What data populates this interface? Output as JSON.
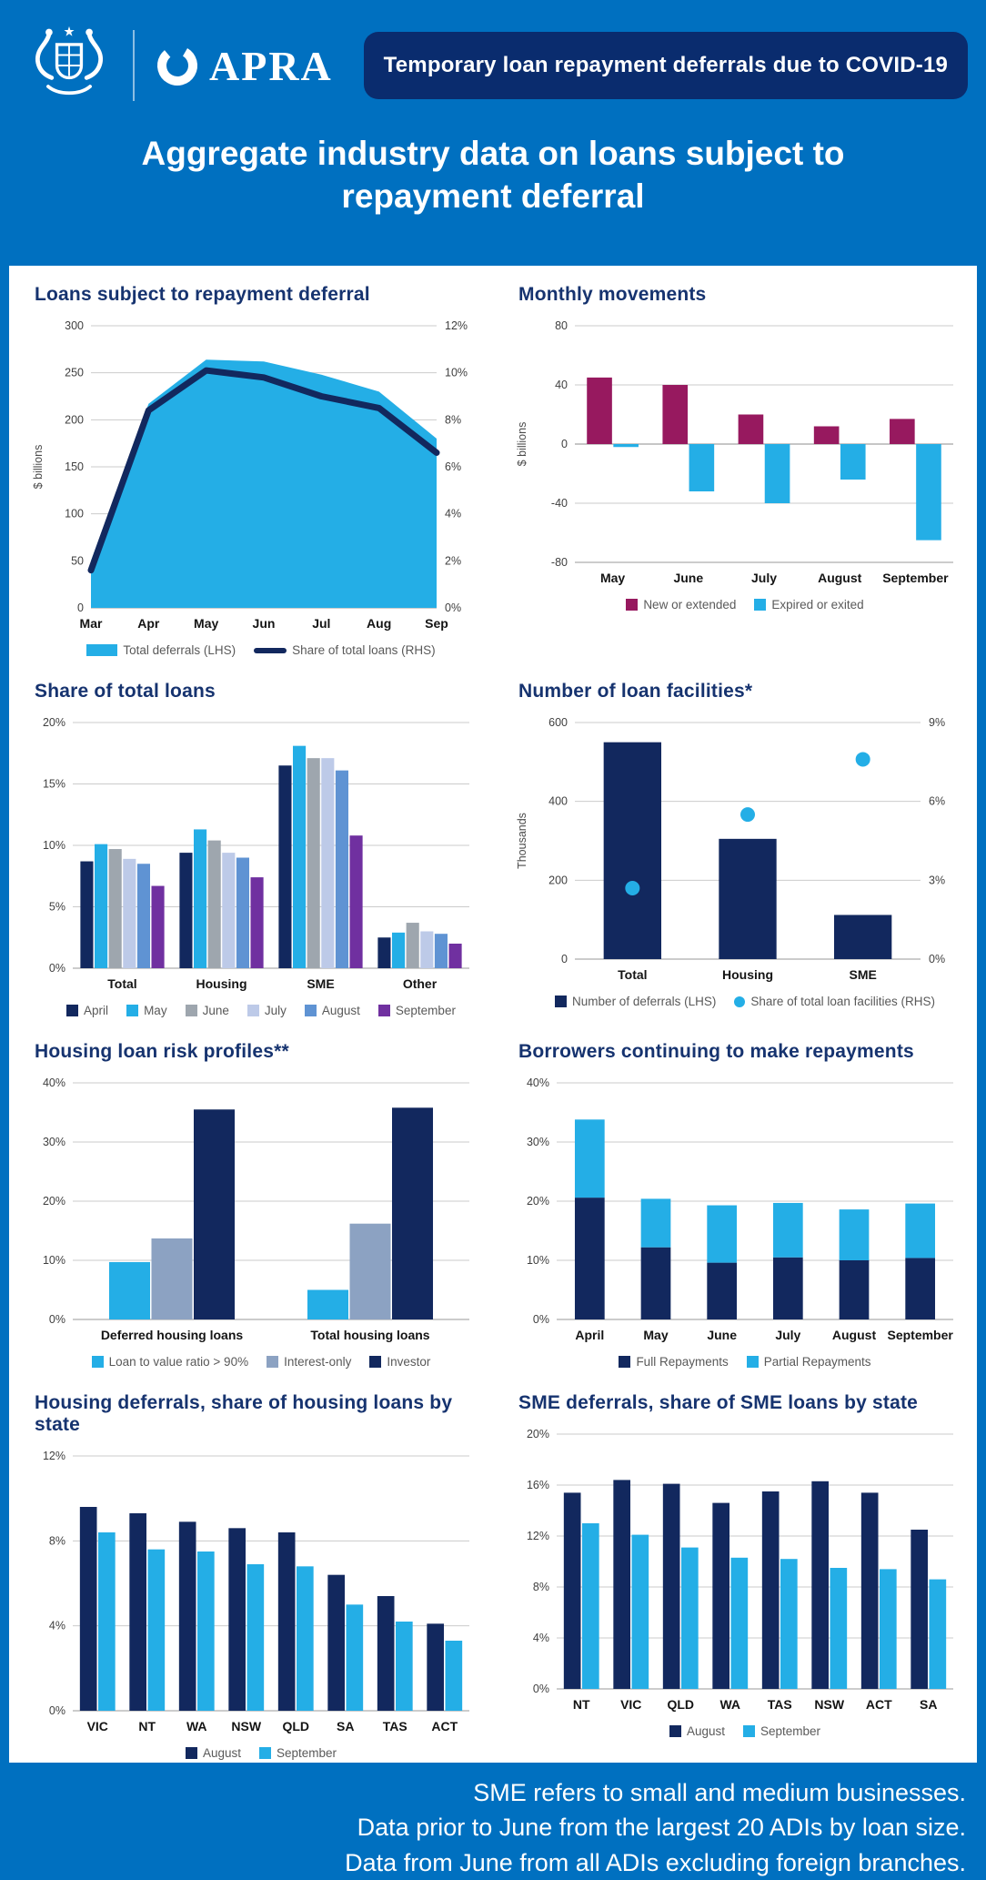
{
  "header": {
    "logo_text": "APRA",
    "badge": "Temporary loan repayment deferrals due to COVID-19",
    "title_line1": "Aggregate industry data on loans subject to",
    "title_line2": "repayment deferral"
  },
  "footer": {
    "lines": [
      "SME refers to small and medium businesses.",
      "Data prior to June from the largest 20 ADIs by loan size.",
      "Data from June from all ADIs excluding foreign branches."
    ]
  },
  "colors": {
    "page_blue": "#0070C0",
    "badge_navy": "#0A2C6E",
    "title_navy": "#16336F",
    "navy": "#12285E",
    "cyan": "#24AEE6",
    "maroon": "#97195F",
    "gray": "#9EA6AE",
    "pale_blue": "#BDCAE8",
    "mid_blue": "#5F93D3",
    "purple": "#7030A0",
    "slate": "#8CA2C2"
  },
  "chart_data": [
    {
      "id": "loans-subject-to-deferral",
      "type": "area-line",
      "title": "Loans subject to repayment deferral",
      "x": [
        "Mar",
        "Apr",
        "May",
        "Jun",
        "Jul",
        "Aug",
        "Sep"
      ],
      "ylabel": "$ billions",
      "left_axis": {
        "min": 0,
        "max": 300,
        "step": 50,
        "suffix": ""
      },
      "right_axis": {
        "min": 0,
        "max": 12,
        "step": 2,
        "suffix": "%"
      },
      "series": [
        {
          "name": "Total deferrals (LHS)",
          "type": "area",
          "axis": "left",
          "color_key": "cyan",
          "swatch": "rect",
          "values": [
            50,
            217,
            264,
            262,
            248,
            230,
            180
          ]
        },
        {
          "name": "Share of total loans (RHS)",
          "type": "line",
          "axis": "right",
          "color_key": "navy",
          "swatch": "line",
          "values": [
            1.6,
            8.4,
            10.1,
            9.8,
            9.0,
            8.5,
            6.6
          ]
        }
      ]
    },
    {
      "id": "monthly-movements",
      "type": "bars",
      "title": "Monthly movements",
      "x": [
        "May",
        "June",
        "July",
        "August",
        "September"
      ],
      "ylabel": "$ billions",
      "group_frac": 0.7,
      "left_axis": {
        "min": -80,
        "max": 80,
        "step": 40,
        "suffix": ""
      },
      "series": [
        {
          "name": "New or extended",
          "color_key": "maroon",
          "values": [
            45,
            40,
            20,
            12,
            17
          ]
        },
        {
          "name": "Expired or exited",
          "color_key": "cyan",
          "values": [
            -2,
            -32,
            -40,
            -24,
            -65
          ]
        }
      ]
    },
    {
      "id": "share-of-total-loans",
      "type": "bars",
      "title": "Share of total loans",
      "x": [
        "Total",
        "Housing",
        "SME",
        "Other"
      ],
      "group_frac": 0.86,
      "left_axis": {
        "min": 0,
        "max": 20,
        "step": 5,
        "suffix": "%"
      },
      "series": [
        {
          "name": "April",
          "color_key": "navy",
          "values": [
            8.7,
            9.4,
            16.5,
            2.5
          ]
        },
        {
          "name": "May",
          "color_key": "cyan",
          "values": [
            10.1,
            11.3,
            18.1,
            2.9
          ]
        },
        {
          "name": "June",
          "color_key": "gray",
          "values": [
            9.7,
            10.4,
            17.1,
            3.7
          ]
        },
        {
          "name": "July",
          "color_key": "pale_blue",
          "values": [
            8.9,
            9.4,
            17.1,
            3.0
          ]
        },
        {
          "name": "August",
          "color_key": "mid_blue",
          "values": [
            8.5,
            9.0,
            16.1,
            2.8
          ]
        },
        {
          "name": "September",
          "color_key": "purple",
          "values": [
            6.7,
            7.4,
            10.8,
            2.0
          ]
        }
      ]
    },
    {
      "id": "number-of-loan-facilities",
      "type": "bars-dots",
      "title": "Number of loan facilities*",
      "x": [
        "Total",
        "Housing",
        "SME"
      ],
      "ylabel": "Thousands",
      "bar_frac": 0.5,
      "left_axis": {
        "min": 0,
        "max": 600,
        "step": 200,
        "suffix": ""
      },
      "right_axis": {
        "min": 0,
        "max": 9,
        "step": 3,
        "suffix": "%"
      },
      "series": [
        {
          "name": "Number of deferrals (LHS)",
          "type": "bar",
          "axis": "left",
          "color_key": "navy",
          "swatch": "square",
          "values": [
            550,
            305,
            112
          ]
        },
        {
          "name": "Share of total loan facilities (RHS)",
          "type": "dot",
          "axis": "right",
          "color_key": "cyan",
          "swatch": "dot",
          "values": [
            2.7,
            5.5,
            7.6
          ]
        }
      ]
    },
    {
      "id": "housing-loan-risk-profiles",
      "type": "bars",
      "title": "Housing loan risk profiles**",
      "x": [
        "Deferred housing loans",
        "Total housing loans"
      ],
      "group_frac": 0.64,
      "left_axis": {
        "min": 0,
        "max": 40,
        "step": 10,
        "suffix": "%"
      },
      "series": [
        {
          "name": "Loan to value ratio > 90%",
          "color_key": "cyan",
          "values": [
            9.7,
            5.0
          ]
        },
        {
          "name": "Interest-only",
          "color_key": "slate",
          "values": [
            13.7,
            16.2
          ]
        },
        {
          "name": "Investor",
          "color_key": "navy",
          "values": [
            35.5,
            35.8
          ]
        }
      ]
    },
    {
      "id": "borrowers-continuing-repayments",
      "type": "stacked",
      "title": "Borrowers continuing to make repayments",
      "x": [
        "April",
        "May",
        "June",
        "July",
        "August",
        "September"
      ],
      "bar_frac": 0.45,
      "left_axis": {
        "min": 0,
        "max": 40,
        "step": 10,
        "suffix": "%"
      },
      "series": [
        {
          "name": "Full Repayments",
          "color_key": "navy",
          "values": [
            20.6,
            12.2,
            9.6,
            10.5,
            10.0,
            10.4
          ]
        },
        {
          "name": "Partial Repayments",
          "color_key": "cyan",
          "values": [
            13.2,
            8.2,
            9.7,
            9.2,
            8.6,
            9.2
          ]
        }
      ]
    },
    {
      "id": "housing-deferrals-by-state",
      "type": "bars",
      "title": "Housing deferrals, share of housing loans by state",
      "x": [
        "VIC",
        "NT",
        "WA",
        "NSW",
        "QLD",
        "SA",
        "TAS",
        "ACT"
      ],
      "group_frac": 0.74,
      "left_axis": {
        "min": 0,
        "max": 12,
        "step": 4,
        "suffix": "%"
      },
      "series": [
        {
          "name": "August",
          "color_key": "navy",
          "values": [
            9.6,
            9.3,
            8.9,
            8.6,
            8.4,
            6.4,
            5.4,
            4.1
          ]
        },
        {
          "name": "September",
          "color_key": "cyan",
          "values": [
            8.4,
            7.6,
            7.5,
            6.9,
            6.8,
            5.0,
            4.2,
            3.3
          ]
        }
      ]
    },
    {
      "id": "sme-deferrals-by-state",
      "type": "bars",
      "title": "SME deferrals, share of SME loans by state",
      "x": [
        "NT",
        "VIC",
        "QLD",
        "WA",
        "TAS",
        "NSW",
        "ACT",
        "SA"
      ],
      "group_frac": 0.74,
      "left_axis": {
        "min": 0,
        "max": 20,
        "step": 4,
        "suffix": "%"
      },
      "series": [
        {
          "name": "August",
          "color_key": "navy",
          "values": [
            15.4,
            16.4,
            16.1,
            14.6,
            15.5,
            16.3,
            15.4,
            12.5
          ]
        },
        {
          "name": "September",
          "color_key": "cyan",
          "values": [
            13.0,
            12.1,
            11.1,
            10.3,
            10.2,
            9.5,
            9.4,
            8.6
          ]
        }
      ]
    }
  ]
}
